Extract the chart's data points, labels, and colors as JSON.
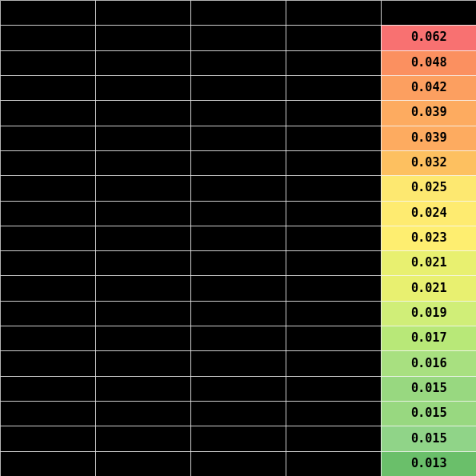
{
  "values": [
    0.062,
    0.048,
    0.042,
    0.039,
    0.039,
    0.032,
    0.025,
    0.024,
    0.023,
    0.021,
    0.021,
    0.019,
    0.017,
    0.016,
    0.015,
    0.015,
    0.015,
    0.013
  ],
  "row_colors_right": [
    "#f87171",
    "#fb9060",
    "#fc9f60",
    "#fdab60",
    "#fdab60",
    "#fdc060",
    "#fde870",
    "#feeb70",
    "#feee70",
    "#e8f070",
    "#e8f070",
    "#d0ee78",
    "#b8e878",
    "#a8e080",
    "#98d880",
    "#98d880",
    "#90d488",
    "#6abf6a"
  ],
  "n_cols": 5,
  "n_rows": 18,
  "header_color": "#000000",
  "left_cols_color": "#000000",
  "grid_color": "#ffffff",
  "text_color": "#000000",
  "value_fontsize": 11,
  "fig_width": 5.95,
  "fig_height": 5.95,
  "dpi": 100
}
